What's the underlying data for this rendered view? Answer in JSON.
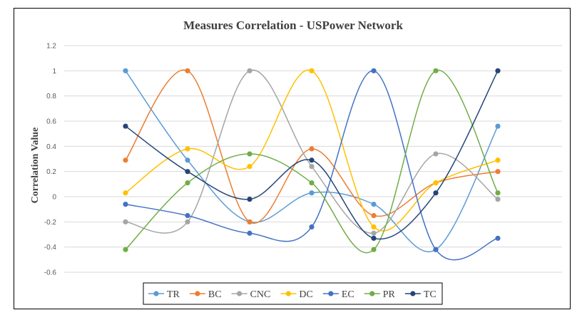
{
  "chart_data": {
    "type": "line",
    "title": "Measures Correlation - USPower Network",
    "xlabel": "",
    "ylabel": "Correlation Value",
    "ylim": [
      -0.6,
      1.2
    ],
    "yticks": [
      "1.2",
      "1",
      "0.8",
      "0.6",
      "0.4",
      "0.2",
      "0",
      "-0.2",
      "-0.4",
      "-0.6"
    ],
    "ytick_values": [
      1.2,
      1,
      0.8,
      0.6,
      0.4,
      0.2,
      0,
      -0.2,
      -0.4,
      -0.6
    ],
    "x": [
      1,
      2,
      3,
      4,
      5,
      6,
      7
    ],
    "grid": "horizontal",
    "smooth": true,
    "legend_position": "bottom",
    "series": [
      {
        "name": "TR",
        "color": "#5B9BD5",
        "values": [
          1,
          0.29,
          -0.2,
          0.03,
          -0.06,
          -0.42,
          0.56
        ]
      },
      {
        "name": "BC",
        "color": "#ED7D31",
        "values": [
          0.29,
          1,
          -0.2,
          0.38,
          -0.15,
          0.11,
          0.2
        ]
      },
      {
        "name": "CNC",
        "color": "#A5A5A5",
        "values": [
          -0.2,
          -0.2,
          1,
          0.24,
          -0.29,
          0.34,
          -0.02
        ]
      },
      {
        "name": "DC",
        "color": "#FFC000",
        "values": [
          0.03,
          0.38,
          0.24,
          1,
          -0.24,
          0.11,
          0.29
        ]
      },
      {
        "name": "EC",
        "color": "#4472C4",
        "values": [
          -0.06,
          -0.15,
          -0.29,
          -0.24,
          1,
          -0.42,
          -0.33
        ]
      },
      {
        "name": "PR",
        "color": "#70AD47",
        "values": [
          -0.42,
          0.11,
          0.34,
          0.11,
          -0.42,
          1,
          0.03
        ]
      },
      {
        "name": "TC",
        "color": "#264478",
        "values": [
          0.56,
          0.2,
          -0.02,
          0.29,
          -0.33,
          0.03,
          1
        ]
      }
    ]
  }
}
